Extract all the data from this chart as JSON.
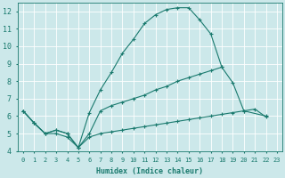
{
  "xlabel": "Humidex (Indice chaleur)",
  "bg_color": "#cce8ea",
  "grid_color": "#ffffff",
  "line_color": "#1a7a6e",
  "xlim": [
    -0.5,
    23.5
  ],
  "ylim": [
    4,
    12.5
  ],
  "xticks": [
    0,
    1,
    2,
    3,
    4,
    5,
    6,
    7,
    8,
    9,
    10,
    11,
    12,
    13,
    14,
    15,
    16,
    17,
    18,
    19,
    20,
    21,
    22,
    23
  ],
  "yticks": [
    4,
    5,
    6,
    7,
    8,
    9,
    10,
    11,
    12
  ],
  "series": [
    {
      "x": [
        0,
        1,
        2,
        3,
        4,
        5,
        6,
        7,
        8,
        9,
        10,
        11,
        12,
        13,
        14,
        15,
        16,
        17,
        18
      ],
      "y": [
        6.3,
        5.6,
        5.0,
        5.2,
        5.0,
        4.2,
        6.2,
        7.5,
        8.5,
        9.6,
        10.4,
        11.3,
        11.8,
        12.1,
        12.2,
        12.2,
        11.5,
        10.7,
        8.8
      ]
    },
    {
      "x": [
        0,
        1,
        2,
        3,
        4,
        5,
        6,
        7,
        8,
        9,
        10,
        11,
        12,
        13,
        14,
        15,
        16,
        17,
        18,
        19,
        20,
        22
      ],
      "y": [
        6.3,
        5.6,
        5.0,
        5.2,
        5.0,
        4.2,
        5.0,
        6.3,
        6.6,
        6.8,
        7.0,
        7.2,
        7.5,
        7.7,
        8.0,
        8.2,
        8.4,
        8.6,
        8.8,
        7.9,
        6.3,
        6.0
      ]
    },
    {
      "x": [
        0,
        1,
        2,
        3,
        4,
        5,
        6,
        7,
        8,
        9,
        10,
        11,
        12,
        13,
        14,
        15,
        16,
        17,
        18,
        19,
        20,
        21,
        22
      ],
      "y": [
        6.3,
        5.6,
        5.0,
        5.0,
        4.8,
        4.2,
        4.8,
        5.0,
        5.1,
        5.2,
        5.3,
        5.4,
        5.5,
        5.6,
        5.7,
        5.8,
        5.9,
        6.0,
        6.1,
        6.2,
        6.3,
        6.4,
        5.95
      ]
    }
  ]
}
